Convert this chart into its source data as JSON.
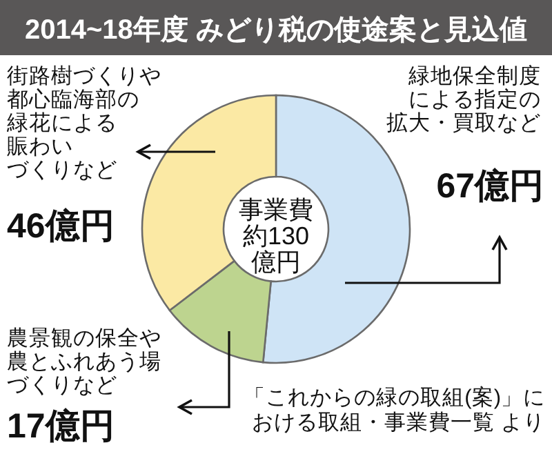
{
  "chart_data": {
    "type": "donut",
    "title": "2014~18年度 みどり税の使途案と見込値",
    "categories": [
      "緑地保全制度による指定の拡大・買取など",
      "農景観の保全や農とふれあう場づくりなど",
      "街路樹づくりや都心臨海部の緑花による賑わいづくりなど"
    ],
    "values": [
      67,
      17,
      46
    ],
    "colors": [
      "#cfe4f6",
      "#bdd48f",
      "#fbe9a4"
    ],
    "value_labels": [
      "67億円",
      "17億円",
      "46億円"
    ],
    "annotations": [
      "事業費約130億円",
      "「これからの緑の取組(案)」における取組・事業費一覧 より"
    ]
  }
}
